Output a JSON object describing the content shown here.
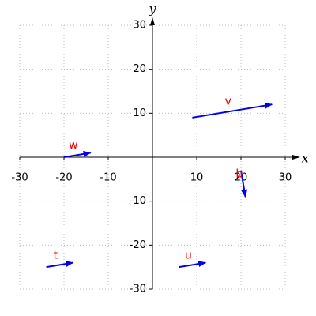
{
  "chart_data": {
    "type": "vector",
    "xlabel": "x",
    "ylabel": "y",
    "xlim": [
      -30,
      30
    ],
    "ylim": [
      -30,
      30
    ],
    "xticks": [
      -30,
      -20,
      -10,
      10,
      20,
      30
    ],
    "yticks": [
      -30,
      -20,
      -10,
      10,
      20,
      30
    ],
    "grid": true,
    "color": "#0000ee",
    "label_color": "#ee0000",
    "vectors": [
      {
        "name": "v",
        "start": [
          9,
          9
        ],
        "end": [
          27,
          12
        ]
      },
      {
        "name": "w",
        "start": [
          -20,
          0
        ],
        "end": [
          -14,
          1
        ]
      },
      {
        "name": "t",
        "start": [
          -24,
          -25
        ],
        "end": [
          -18,
          -24
        ]
      },
      {
        "name": "u",
        "start": [
          6,
          -25
        ],
        "end": [
          12,
          -24
        ]
      },
      {
        "name": "b",
        "start": [
          20,
          -3
        ],
        "end": [
          21,
          -9
        ]
      }
    ]
  }
}
